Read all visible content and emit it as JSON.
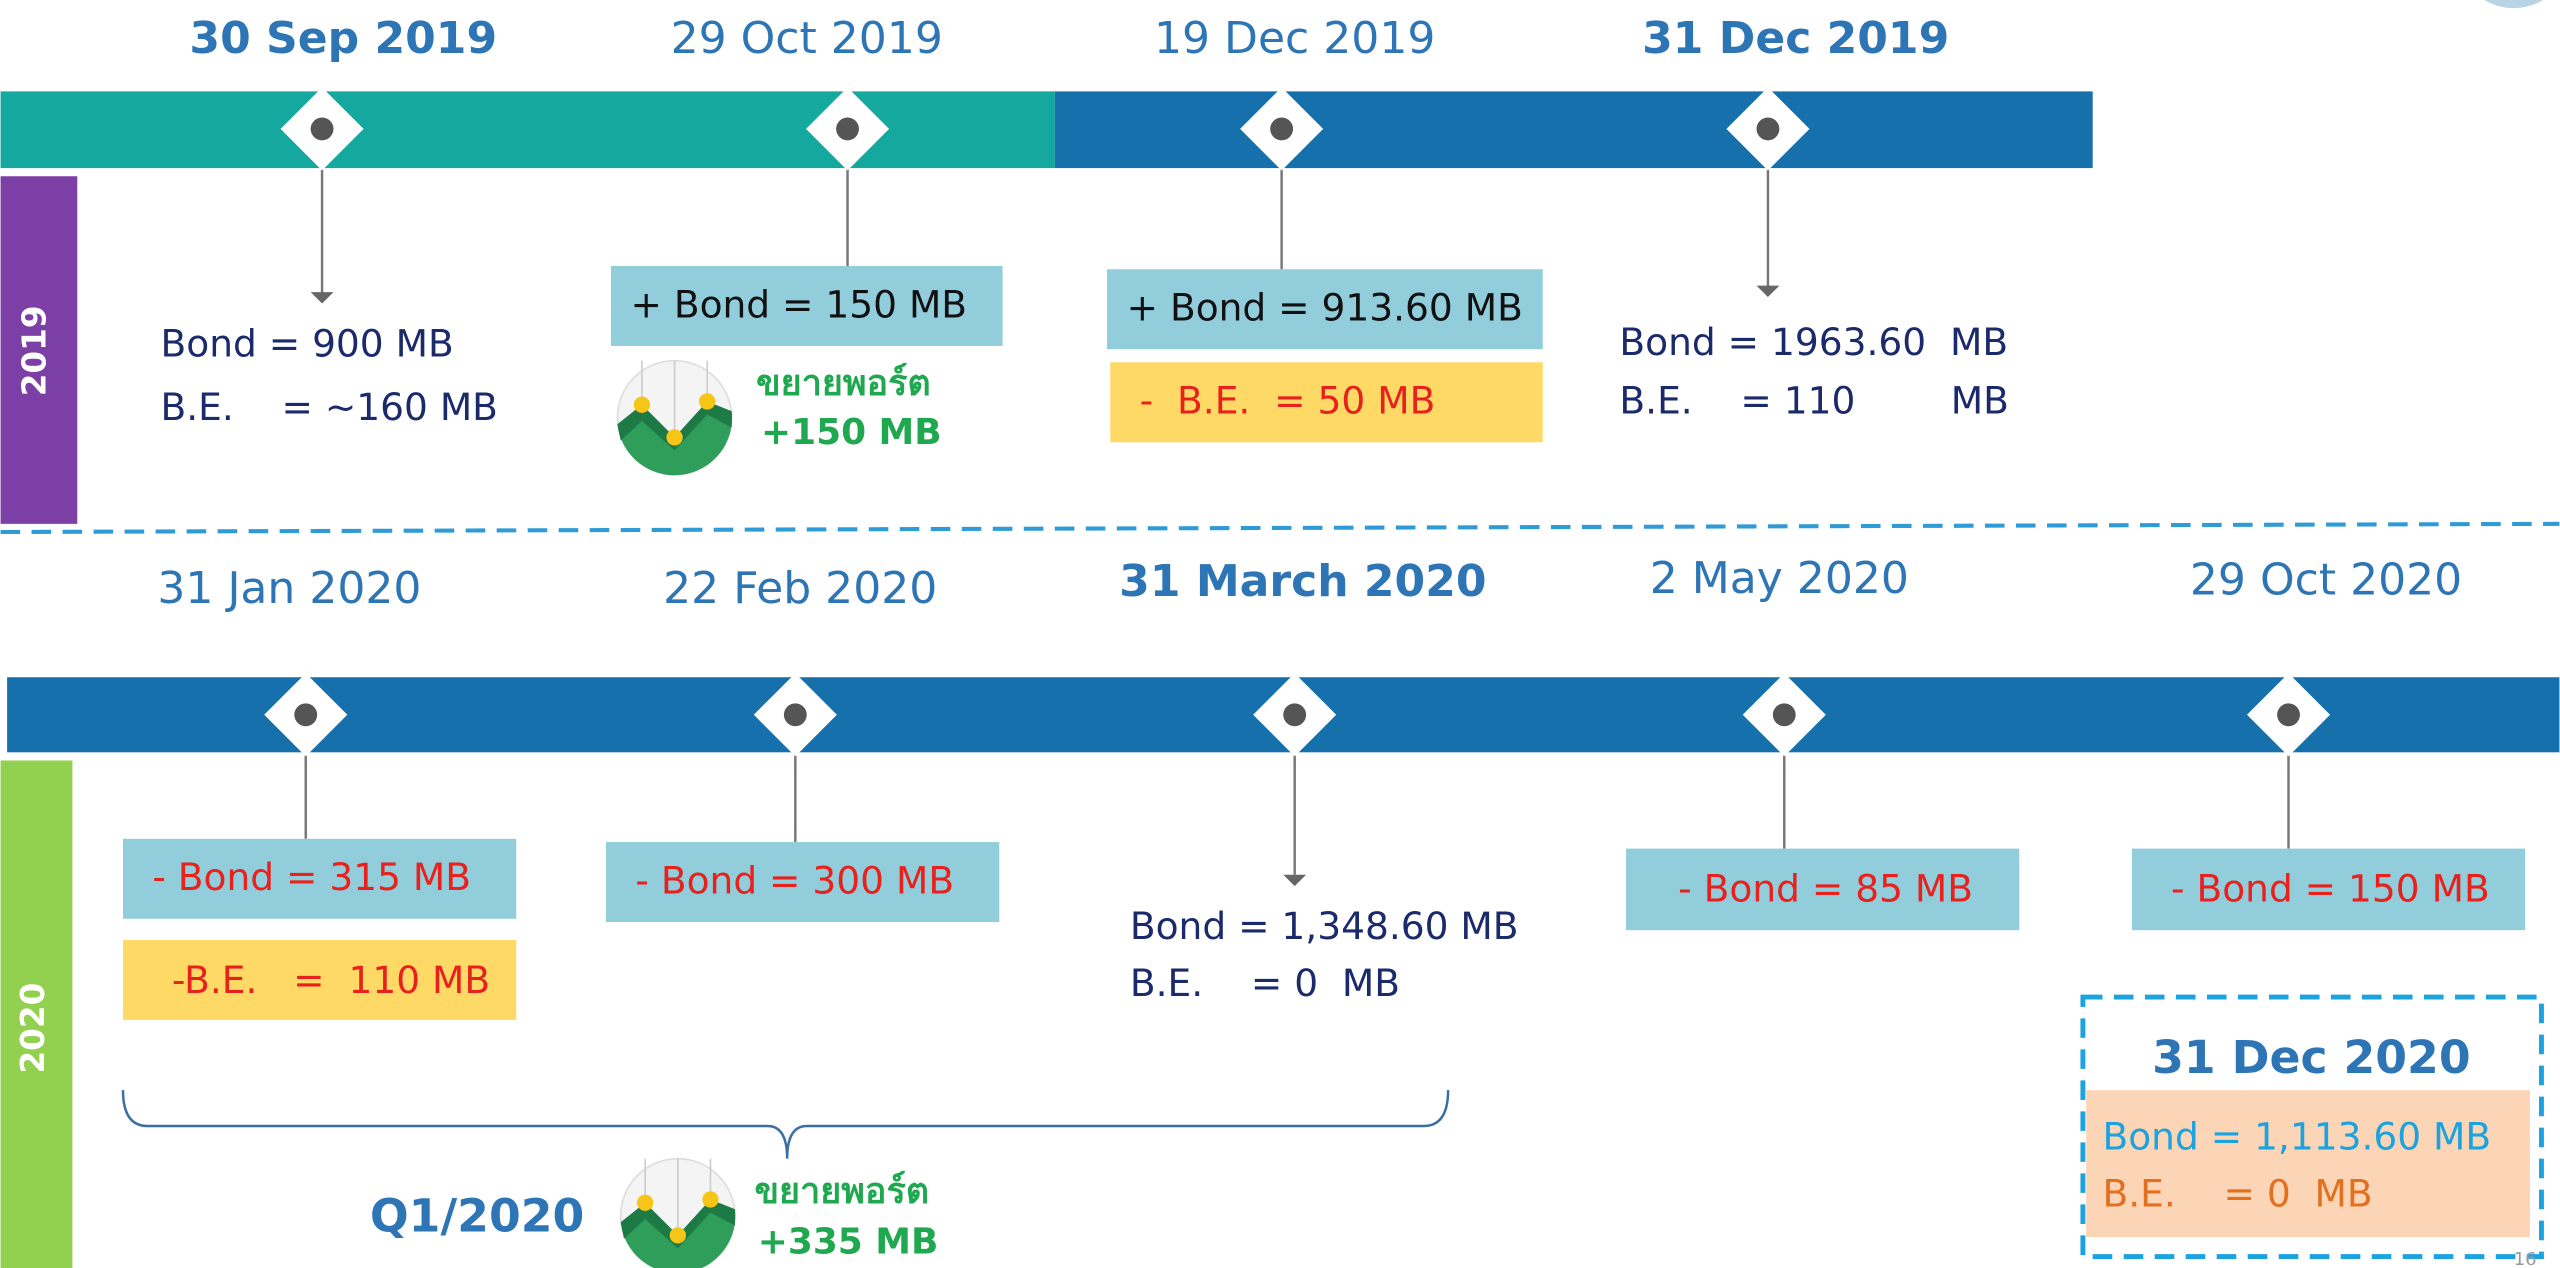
{
  "timeline_2019": {
    "year": "2019",
    "events": [
      {
        "date": "30 Sep 2019",
        "lines": [
          "Bond = 900 MB",
          "B.E.    = ~160 MB"
        ]
      },
      {
        "date": "29 Oct 2019",
        "lines": [
          "+ Bond = 150 MB"
        ],
        "note": [
          "ขยายพอร์ต",
          "+150 MB"
        ]
      },
      {
        "date": "19 Dec 2019",
        "lines": [
          "+ Bond = 913.60 MB",
          "-  B.E.  = 50 MB"
        ]
      },
      {
        "date": "31 Dec 2019",
        "lines": [
          "Bond = 1963.60  MB",
          "B.E.    = 110        MB"
        ]
      }
    ]
  },
  "timeline_2020": {
    "year": "2020",
    "events": [
      {
        "date": "31 Jan 2020",
        "lines": [
          "- Bond = 315 MB",
          "-B.E.   =  110 MB"
        ]
      },
      {
        "date": "22 Feb 2020",
        "lines": [
          "- Bond = 300 MB"
        ]
      },
      {
        "date": "31 March 2020",
        "lines": [
          "Bond = 1,348.60 MB",
          "B.E.    = 0  MB"
        ]
      },
      {
        "date": "2 May 2020",
        "lines": [
          "- Bond = 85 MB"
        ]
      },
      {
        "date": "29 Oct 2020",
        "lines": [
          "- Bond = 150 MB"
        ]
      }
    ],
    "quarter": {
      "label": "Q1/2020",
      "note": [
        "ขยายพอร์ต",
        "+335 MB"
      ]
    },
    "summary": {
      "date": "31 Dec 2020",
      "lines": [
        "Bond = 1,113.60 MB",
        "B.E.    = 0  MB"
      ]
    }
  },
  "page_number": "16"
}
